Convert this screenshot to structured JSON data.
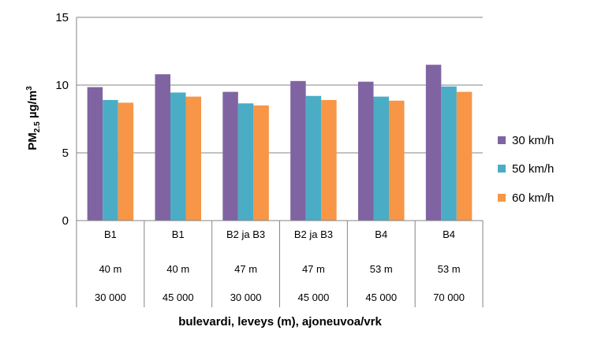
{
  "chart_data": {
    "type": "bar",
    "ylabel_base": "PM",
    "ylabel_sub": "2.5",
    "ylabel_unit": " µg/m",
    "ylabel_sup": "3",
    "xlabel": "bulevardi, leveys (m), ajoneuvoa/vrk",
    "ylim": [
      0,
      15
    ],
    "yticks": [
      0,
      5,
      10,
      15
    ],
    "grid": true,
    "legend_position": "right",
    "categories": [
      [
        "B1",
        "40 m",
        "30 000"
      ],
      [
        "B1",
        "40 m",
        "45 000"
      ],
      [
        "B2 ja B3",
        "47 m",
        "30 000"
      ],
      [
        "B2 ja B3",
        "47 m",
        "45 000"
      ],
      [
        "B4",
        "53 m",
        "45 000"
      ],
      [
        "B4",
        "53 m",
        "70 000"
      ]
    ],
    "series": [
      {
        "name": "30 km/h",
        "color": "#8064A2",
        "values": [
          9.85,
          10.8,
          9.5,
          10.3,
          10.25,
          11.5
        ]
      },
      {
        "name": "50 km/h",
        "color": "#4BACC6",
        "values": [
          8.9,
          9.45,
          8.65,
          9.2,
          9.15,
          9.9
        ]
      },
      {
        "name": "60 km/h",
        "color": "#F79646",
        "values": [
          8.7,
          9.15,
          8.5,
          8.9,
          8.85,
          9.5
        ]
      }
    ]
  }
}
